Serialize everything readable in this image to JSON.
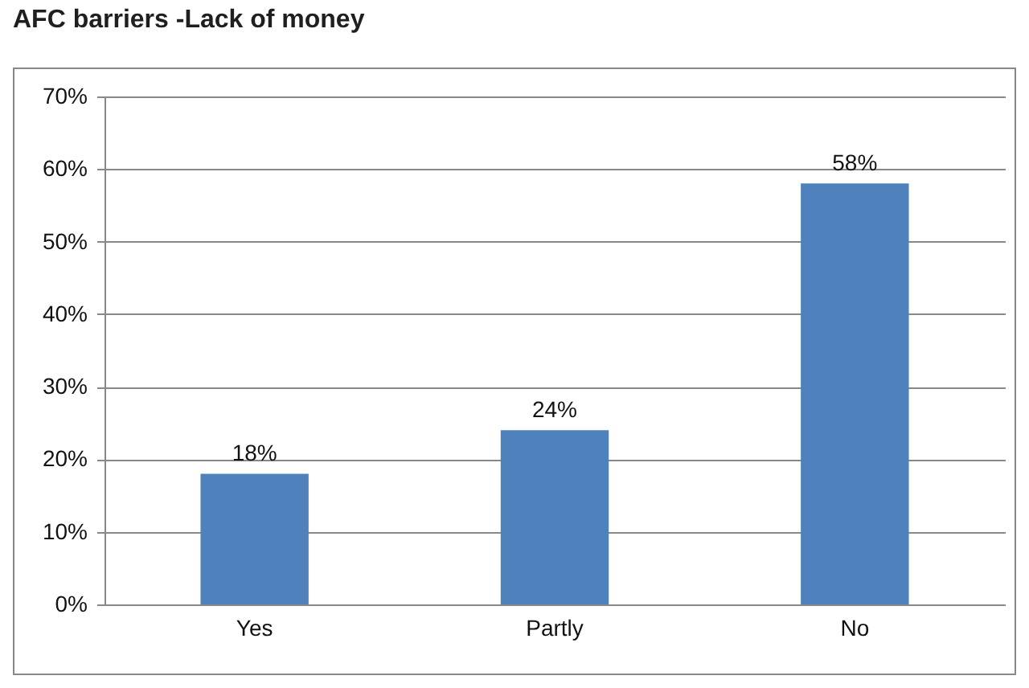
{
  "chart_data": {
    "type": "bar",
    "title": "AFC barriers -Lack of money",
    "categories": [
      "Yes",
      "Partly",
      "No"
    ],
    "values": [
      18,
      24,
      58
    ],
    "value_labels": [
      "18%",
      "24%",
      "58%"
    ],
    "color": "#4f81bd",
    "ylim": [
      0,
      70
    ],
    "yticks": [
      {
        "value": 0,
        "label": "0%"
      },
      {
        "value": 10,
        "label": "10%"
      },
      {
        "value": 20,
        "label": "20%"
      },
      {
        "value": 30,
        "label": "30%"
      },
      {
        "value": 40,
        "label": "40%"
      },
      {
        "value": 50,
        "label": "50%"
      },
      {
        "value": 60,
        "label": "60%"
      },
      {
        "value": 70,
        "label": "70%"
      }
    ],
    "grid": "y"
  }
}
